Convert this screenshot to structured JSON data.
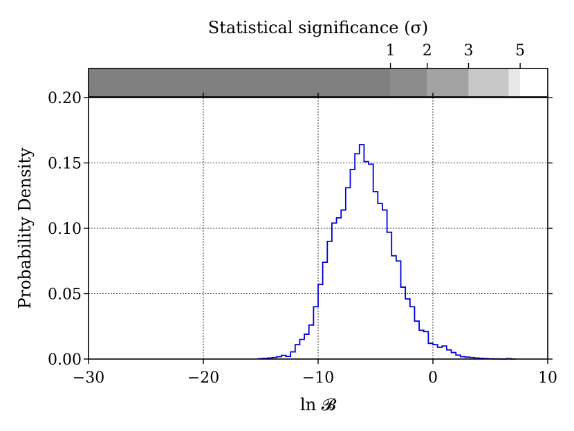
{
  "chart_data": [
    {
      "type": "histogram",
      "xlabel": "ln 𝓑",
      "ylabel": "Probability Density",
      "xlim": [
        -30,
        10
      ],
      "ylim": [
        0,
        0.2
      ],
      "xticks": [
        -30,
        -20,
        -10,
        0,
        10
      ],
      "xtick_labels": [
        "−30",
        "−20",
        "−10",
        "0",
        "10"
      ],
      "yticks": [
        0,
        0.05,
        0.1,
        0.15,
        0.2
      ],
      "ytick_labels": [
        "0.00",
        "0.05",
        "0.10",
        "0.15",
        "0.20"
      ],
      "grid": true,
      "line_color": "#0000dd",
      "bin_width": 0.4,
      "bins": [
        {
          "x0": -15.2,
          "y": 0.0003
        },
        {
          "x0": -14.8,
          "y": 0.0005
        },
        {
          "x0": -14.4,
          "y": 0.0008
        },
        {
          "x0": -14.0,
          "y": 0.0012
        },
        {
          "x0": -13.6,
          "y": 0.0018
        },
        {
          "x0": -13.2,
          "y": 0.0028
        },
        {
          "x0": -12.8,
          "y": 0.002
        },
        {
          "x0": -12.4,
          "y": 0.0055
        },
        {
          "x0": -12.0,
          "y": 0.011
        },
        {
          "x0": -11.6,
          "y": 0.015
        },
        {
          "x0": -11.2,
          "y": 0.019
        },
        {
          "x0": -10.8,
          "y": 0.026
        },
        {
          "x0": -10.4,
          "y": 0.04
        },
        {
          "x0": -10.0,
          "y": 0.057
        },
        {
          "x0": -9.6,
          "y": 0.074
        },
        {
          "x0": -9.2,
          "y": 0.09
        },
        {
          "x0": -8.8,
          "y": 0.104
        },
        {
          "x0": -8.4,
          "y": 0.108
        },
        {
          "x0": -8.0,
          "y": 0.114
        },
        {
          "x0": -7.6,
          "y": 0.131
        },
        {
          "x0": -7.2,
          "y": 0.145
        },
        {
          "x0": -6.8,
          "y": 0.157
        },
        {
          "x0": -6.4,
          "y": 0.164
        },
        {
          "x0": -6.0,
          "y": 0.151
        },
        {
          "x0": -5.6,
          "y": 0.149
        },
        {
          "x0": -5.2,
          "y": 0.128
        },
        {
          "x0": -4.8,
          "y": 0.119
        },
        {
          "x0": -4.4,
          "y": 0.114
        },
        {
          "x0": -4.0,
          "y": 0.097
        },
        {
          "x0": -3.6,
          "y": 0.079
        },
        {
          "x0": -3.2,
          "y": 0.075
        },
        {
          "x0": -2.8,
          "y": 0.055
        },
        {
          "x0": -2.4,
          "y": 0.046
        },
        {
          "x0": -2.0,
          "y": 0.04
        },
        {
          "x0": -1.6,
          "y": 0.029
        },
        {
          "x0": -1.2,
          "y": 0.022
        },
        {
          "x0": -0.8,
          "y": 0.021
        },
        {
          "x0": -0.4,
          "y": 0.012
        },
        {
          "x0": 0.0,
          "y": 0.011
        },
        {
          "x0": 0.4,
          "y": 0.009
        },
        {
          "x0": 0.8,
          "y": 0.01
        },
        {
          "x0": 1.2,
          "y": 0.007
        },
        {
          "x0": 1.6,
          "y": 0.005
        },
        {
          "x0": 2.0,
          "y": 0.003
        },
        {
          "x0": 2.4,
          "y": 0.0018
        },
        {
          "x0": 2.8,
          "y": 0.0015
        },
        {
          "x0": 3.2,
          "y": 0.0012
        },
        {
          "x0": 3.6,
          "y": 0.0008
        },
        {
          "x0": 4.0,
          "y": 0.0006
        },
        {
          "x0": 4.4,
          "y": 0.0004
        },
        {
          "x0": 4.8,
          "y": 0.0002
        },
        {
          "x0": 5.2,
          "y": 0.0001
        },
        {
          "x0": 5.6,
          "y": 0.0001
        },
        {
          "x0": 6.0,
          "y": 0.0
        },
        {
          "x0": 6.4,
          "y": 0.0003
        },
        {
          "x0": 6.8,
          "y": 0.0
        }
      ]
    },
    {
      "type": "bar",
      "title": "Statistical significance (σ)",
      "xlim": [
        -30,
        10
      ],
      "tick_labels": [
        "1",
        "2",
        "3",
        "5"
      ],
      "tick_positions": [
        -3.7,
        -0.5,
        3.1,
        7.6
      ],
      "bands": [
        {
          "from": -30,
          "to": -3.7,
          "color": "#808080"
        },
        {
          "from": -3.7,
          "to": -0.5,
          "color": "#8c8c8c"
        },
        {
          "from": -0.5,
          "to": 3.1,
          "color": "#a3a3a3"
        },
        {
          "from": 3.1,
          "to": 6.6,
          "color": "#c8c8c8"
        },
        {
          "from": 6.6,
          "to": 7.6,
          "color": "#e8e8e8"
        },
        {
          "from": 7.6,
          "to": 10,
          "color": "#ffffff"
        }
      ]
    }
  ]
}
